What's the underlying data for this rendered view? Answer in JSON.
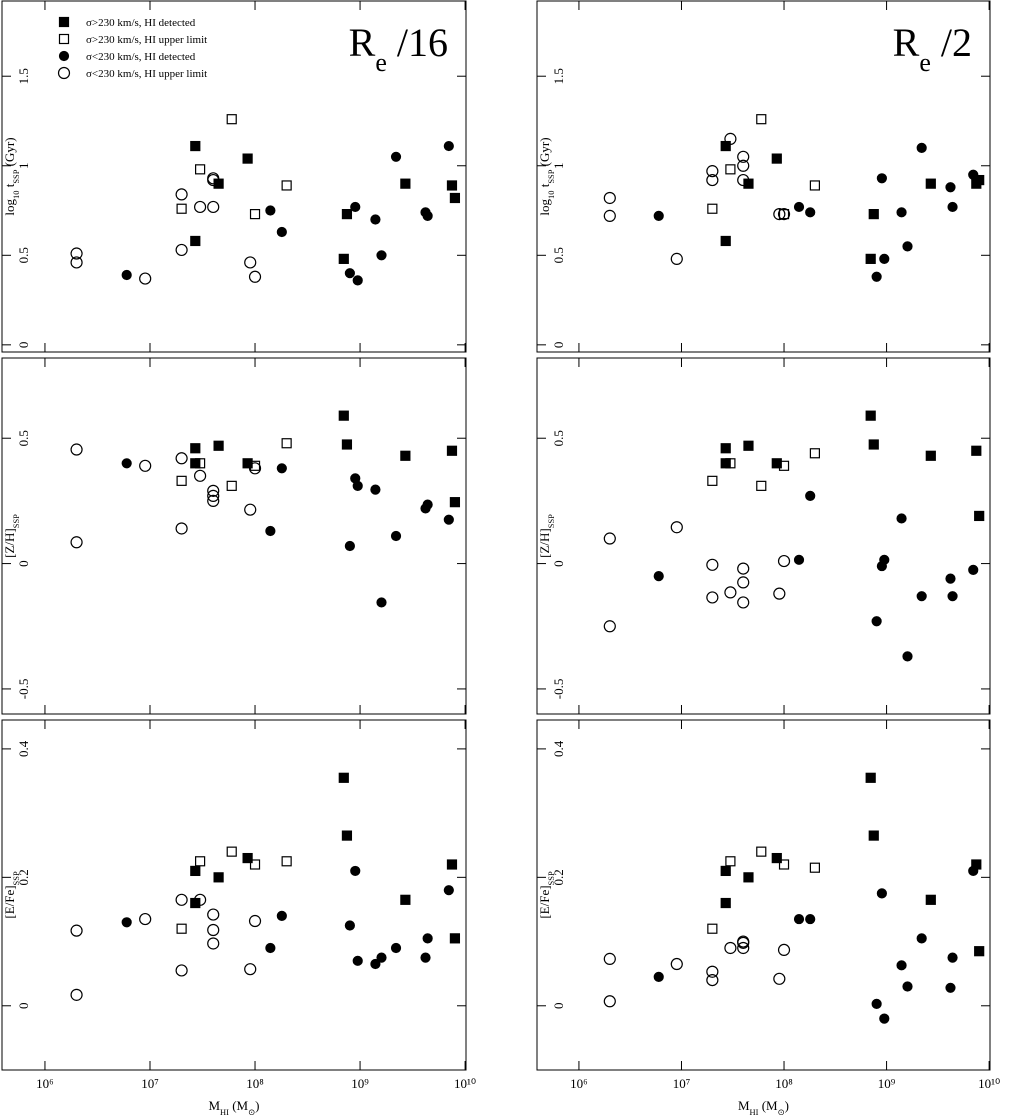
{
  "chart_data": [
    {
      "type": "scatter",
      "log_x": true,
      "xlim": [
        390000,
        10200000000
      ],
      "ylim": [
        -0.04,
        1.92
      ],
      "xticks": [
        1000000,
        10000000,
        100000000,
        1000000000,
        10000000000
      ],
      "yticks": [
        0,
        0.5,
        1,
        1.5
      ],
      "ylabel": [
        {
          "text": "log"
        },
        {
          "text": "10",
          "sub": true
        },
        {
          "text": " t"
        },
        {
          "text": "SSP",
          "sub": true
        },
        {
          "text": " (Gyr)"
        }
      ],
      "annotation": [
        {
          "text": "R"
        },
        {
          "text": "e",
          "sub": true
        },
        {
          "text": " /16"
        }
      ],
      "legend": "upper left",
      "series": [
        {
          "name": "σ>230 km/s, HI detected",
          "color": "#000000",
          "marker": "square",
          "filled": true,
          "x": [
            27000000,
            27000000,
            45000000,
            85000000,
            700000000,
            750000000,
            2700000000,
            7500000000,
            8000000000
          ],
          "values": [
            1.11,
            0.58,
            0.9,
            1.04,
            0.48,
            0.73,
            0.9,
            0.89,
            0.82
          ]
        },
        {
          "name": "σ>230 km/s, HI upper limit",
          "color": "#000000",
          "marker": "square",
          "filled": false,
          "x": [
            20000000,
            30000000,
            60000000,
            100000000,
            200000000
          ],
          "values": [
            0.76,
            0.98,
            1.26,
            0.73,
            0.89
          ]
        },
        {
          "name": "σ<230 km/s, HI detected",
          "color": "#000000",
          "marker": "circle",
          "filled": true,
          "x": [
            6000000,
            140000000,
            180000000,
            800000000,
            900000000,
            950000000,
            1400000000,
            1600000000,
            2200000000,
            4200000000,
            4400000000,
            7000000000
          ],
          "values": [
            0.39,
            0.75,
            0.63,
            0.4,
            0.77,
            0.36,
            0.7,
            0.5,
            1.05,
            0.74,
            0.72,
            1.11
          ]
        },
        {
          "name": "σ<230 km/s, HI upper limit",
          "color": "#000000",
          "marker": "circle",
          "filled": false,
          "x": [
            2000000,
            2000000,
            9000000,
            20000000,
            20000000,
            30000000,
            40000000,
            40000000,
            40000000,
            90000000,
            100000000
          ],
          "values": [
            0.51,
            0.46,
            0.37,
            0.84,
            0.53,
            0.77,
            0.93,
            0.92,
            0.77,
            0.46,
            0.38
          ]
        }
      ]
    },
    {
      "type": "scatter",
      "log_x": true,
      "xlim": [
        390000,
        10200000000
      ],
      "ylim": [
        -0.04,
        1.92
      ],
      "xticks": [
        1000000,
        10000000,
        100000000,
        1000000000,
        10000000000
      ],
      "yticks": [
        0,
        0.5,
        1,
        1.5
      ],
      "ylabel": [
        {
          "text": "log"
        },
        {
          "text": "10",
          "sub": true
        },
        {
          "text": " t"
        },
        {
          "text": "SSP",
          "sub": true
        },
        {
          "text": " (Gyr)"
        }
      ],
      "annotation": [
        {
          "text": "R"
        },
        {
          "text": "e",
          "sub": true
        },
        {
          "text": " /2"
        }
      ],
      "series": [
        {
          "color": "#000000",
          "marker": "square",
          "filled": true,
          "x": [
            27000000,
            27000000,
            45000000,
            85000000,
            700000000,
            750000000,
            2700000000,
            7500000000,
            8000000000
          ],
          "values": [
            1.11,
            0.58,
            0.9,
            1.04,
            0.48,
            0.73,
            0.9,
            0.9,
            0.92
          ]
        },
        {
          "color": "#000000",
          "marker": "square",
          "filled": false,
          "x": [
            20000000,
            30000000,
            60000000,
            100000000,
            200000000
          ],
          "values": [
            0.76,
            0.98,
            1.26,
            0.73,
            0.89
          ]
        },
        {
          "color": "#000000",
          "marker": "circle",
          "filled": true,
          "x": [
            6000000,
            140000000,
            180000000,
            800000000,
            900000000,
            950000000,
            1400000000,
            1600000000,
            2200000000,
            4200000000,
            4400000000,
            7000000000
          ],
          "values": [
            0.72,
            0.77,
            0.74,
            0.38,
            0.93,
            0.48,
            0.74,
            0.55,
            1.1,
            0.88,
            0.77,
            0.95
          ]
        },
        {
          "color": "#000000",
          "marker": "circle",
          "filled": false,
          "x": [
            2000000,
            2000000,
            9000000,
            20000000,
            20000000,
            30000000,
            40000000,
            40000000,
            40000000,
            90000000,
            100000000
          ],
          "values": [
            0.82,
            0.72,
            0.48,
            0.97,
            0.92,
            1.15,
            1.05,
            1.0,
            0.92,
            0.73,
            0.73
          ]
        }
      ]
    },
    {
      "type": "scatter",
      "log_x": true,
      "xlim": [
        390000,
        10200000000
      ],
      "ylim": [
        -0.6,
        0.82
      ],
      "xticks": [
        1000000,
        10000000,
        100000000,
        1000000000,
        10000000000
      ],
      "yticks": [
        -0.5,
        0,
        0.5
      ],
      "ylabel": [
        {
          "text": "[Z/H]"
        },
        {
          "text": "SSP",
          "sub": true
        }
      ],
      "series": [
        {
          "color": "#000000",
          "marker": "square",
          "filled": true,
          "x": [
            27000000,
            27000000,
            45000000,
            85000000,
            700000000,
            750000000,
            2700000000,
            7500000000,
            8000000000
          ],
          "values": [
            0.4,
            0.46,
            0.47,
            0.4,
            0.59,
            0.475,
            0.43,
            0.45,
            0.245
          ]
        },
        {
          "color": "#000000",
          "marker": "square",
          "filled": false,
          "x": [
            20000000,
            30000000,
            60000000,
            100000000,
            200000000
          ],
          "values": [
            0.33,
            0.4,
            0.31,
            0.39,
            0.48
          ]
        },
        {
          "color": "#000000",
          "marker": "circle",
          "filled": true,
          "x": [
            6000000,
            140000000,
            180000000,
            800000000,
            900000000,
            950000000,
            1400000000,
            1600000000,
            2200000000,
            4200000000,
            4400000000,
            7000000000
          ],
          "values": [
            0.4,
            0.13,
            0.38,
            0.07,
            0.34,
            0.31,
            0.295,
            -0.155,
            0.11,
            0.22,
            0.235,
            0.175
          ]
        },
        {
          "color": "#000000",
          "marker": "circle",
          "filled": false,
          "x": [
            2000000,
            2000000,
            9000000,
            20000000,
            20000000,
            30000000,
            40000000,
            40000000,
            40000000,
            90000000,
            100000000
          ],
          "values": [
            0.455,
            0.085,
            0.39,
            0.42,
            0.14,
            0.35,
            0.29,
            0.27,
            0.25,
            0.215,
            0.38
          ]
        }
      ]
    },
    {
      "type": "scatter",
      "log_x": true,
      "xlim": [
        390000,
        10200000000
      ],
      "ylim": [
        -0.6,
        0.82
      ],
      "xticks": [
        1000000,
        10000000,
        100000000,
        1000000000,
        10000000000
      ],
      "yticks": [
        -0.5,
        0,
        0.5
      ],
      "ylabel": [
        {
          "text": "[Z/H]"
        },
        {
          "text": "SSP",
          "sub": true
        }
      ],
      "series": [
        {
          "color": "#000000",
          "marker": "square",
          "filled": true,
          "x": [
            27000000,
            27000000,
            45000000,
            85000000,
            700000000,
            750000000,
            2700000000,
            7500000000,
            8000000000
          ],
          "values": [
            0.4,
            0.46,
            0.47,
            0.4,
            0.59,
            0.475,
            0.43,
            0.45,
            0.19
          ]
        },
        {
          "color": "#000000",
          "marker": "square",
          "filled": false,
          "x": [
            20000000,
            30000000,
            60000000,
            100000000,
            200000000
          ],
          "values": [
            0.33,
            0.4,
            0.31,
            0.39,
            0.44
          ]
        },
        {
          "color": "#000000",
          "marker": "circle",
          "filled": true,
          "x": [
            6000000,
            140000000,
            180000000,
            800000000,
            900000000,
            950000000,
            1400000000,
            1600000000,
            2200000000,
            4200000000,
            4400000000,
            7000000000
          ],
          "values": [
            -0.05,
            0.015,
            0.27,
            -0.23,
            -0.01,
            0.015,
            0.18,
            -0.37,
            -0.13,
            -0.06,
            -0.13,
            -0.025
          ]
        },
        {
          "color": "#000000",
          "marker": "circle",
          "filled": false,
          "x": [
            2000000,
            2000000,
            9000000,
            20000000,
            20000000,
            30000000,
            40000000,
            40000000,
            40000000,
            90000000,
            100000000
          ],
          "values": [
            0.1,
            -0.25,
            0.145,
            -0.005,
            -0.135,
            -0.115,
            -0.02,
            -0.075,
            -0.155,
            -0.12,
            0.01
          ]
        }
      ]
    },
    {
      "type": "scatter",
      "log_x": true,
      "xlim": [
        390000,
        10200000000
      ],
      "ylim": [
        -0.1,
        0.445
      ],
      "xticks": [
        {
          "value": 1000000,
          "label": "10⁶"
        },
        {
          "value": 10000000,
          "label": "10⁷"
        },
        {
          "value": 100000000,
          "label": "10⁸"
        },
        {
          "value": 1000000000,
          "label": "10⁹"
        },
        {
          "value": 10000000000,
          "label": "10¹⁰"
        }
      ],
      "yticks": [
        0,
        0.2,
        0.4
      ],
      "ylabel": [
        {
          "text": "[E/Fe]"
        },
        {
          "text": "SSP",
          "sub": true
        }
      ],
      "xlabel": [
        {
          "text": "M"
        },
        {
          "text": "HI",
          "sub": true
        },
        {
          "text": " (M"
        },
        {
          "text": "⊙",
          "sub": true
        },
        {
          "text": ")"
        }
      ],
      "series": [
        {
          "color": "#000000",
          "marker": "square",
          "filled": true,
          "x": [
            27000000,
            27000000,
            45000000,
            85000000,
            700000000,
            750000000,
            2700000000,
            7500000000,
            8000000000
          ],
          "values": [
            0.21,
            0.16,
            0.2,
            0.23,
            0.355,
            0.265,
            0.165,
            0.22,
            0.105
          ]
        },
        {
          "color": "#000000",
          "marker": "square",
          "filled": false,
          "x": [
            20000000,
            30000000,
            60000000,
            100000000,
            200000000
          ],
          "values": [
            0.12,
            0.225,
            0.24,
            0.22,
            0.225
          ]
        },
        {
          "color": "#000000",
          "marker": "circle",
          "filled": true,
          "x": [
            6000000,
            140000000,
            180000000,
            800000000,
            900000000,
            950000000,
            1400000000,
            1600000000,
            2200000000,
            4200000000,
            4400000000,
            7000000000
          ],
          "values": [
            0.13,
            0.09,
            0.14,
            0.125,
            0.21,
            0.07,
            0.065,
            0.075,
            0.09,
            0.075,
            0.105,
            0.18
          ]
        },
        {
          "color": "#000000",
          "marker": "circle",
          "filled": false,
          "x": [
            2000000,
            2000000,
            9000000,
            20000000,
            20000000,
            30000000,
            40000000,
            40000000,
            40000000,
            90000000,
            100000000
          ],
          "values": [
            0.117,
            0.017,
            0.135,
            0.165,
            0.055,
            0.165,
            0.142,
            0.118,
            0.097,
            0.057,
            0.132
          ]
        }
      ]
    },
    {
      "type": "scatter",
      "log_x": true,
      "xlim": [
        390000,
        10200000000
      ],
      "ylim": [
        -0.1,
        0.445
      ],
      "xticks": [
        {
          "value": 1000000,
          "label": "10⁶"
        },
        {
          "value": 10000000,
          "label": "10⁷"
        },
        {
          "value": 100000000,
          "label": "10⁸"
        },
        {
          "value": 1000000000,
          "label": "10⁹"
        },
        {
          "value": 10000000000,
          "label": "10¹⁰"
        }
      ],
      "yticks": [
        0,
        0.2,
        0.4
      ],
      "ylabel": [
        {
          "text": "[E/Fe]"
        },
        {
          "text": "SSP",
          "sub": true
        }
      ],
      "xlabel": [
        {
          "text": "M"
        },
        {
          "text": "HI",
          "sub": true
        },
        {
          "text": " (M"
        },
        {
          "text": "⊙",
          "sub": true
        },
        {
          "text": ")"
        }
      ],
      "series": [
        {
          "color": "#000000",
          "marker": "square",
          "filled": true,
          "x": [
            27000000,
            27000000,
            45000000,
            85000000,
            700000000,
            750000000,
            2700000000,
            7500000000,
            8000000000
          ],
          "values": [
            0.21,
            0.16,
            0.2,
            0.23,
            0.355,
            0.265,
            0.165,
            0.22,
            0.085
          ]
        },
        {
          "color": "#000000",
          "marker": "square",
          "filled": false,
          "x": [
            20000000,
            30000000,
            60000000,
            100000000,
            200000000
          ],
          "values": [
            0.12,
            0.225,
            0.24,
            0.22,
            0.215
          ]
        },
        {
          "color": "#000000",
          "marker": "circle",
          "filled": true,
          "x": [
            6000000,
            140000000,
            180000000,
            800000000,
            900000000,
            950000000,
            1400000000,
            1600000000,
            2200000000,
            4200000000,
            4400000000,
            7000000000
          ],
          "values": [
            0.045,
            0.135,
            0.135,
            0.003,
            0.175,
            -0.02,
            0.063,
            0.03,
            0.105,
            0.028,
            0.075,
            0.21
          ]
        },
        {
          "color": "#000000",
          "marker": "circle",
          "filled": false,
          "x": [
            2000000,
            2000000,
            9000000,
            20000000,
            20000000,
            30000000,
            40000000,
            40000000,
            40000000,
            90000000,
            100000000
          ],
          "values": [
            0.073,
            0.007,
            0.065,
            0.053,
            0.04,
            0.09,
            0.1,
            0.098,
            0.09,
            0.042,
            0.087
          ]
        }
      ]
    }
  ]
}
